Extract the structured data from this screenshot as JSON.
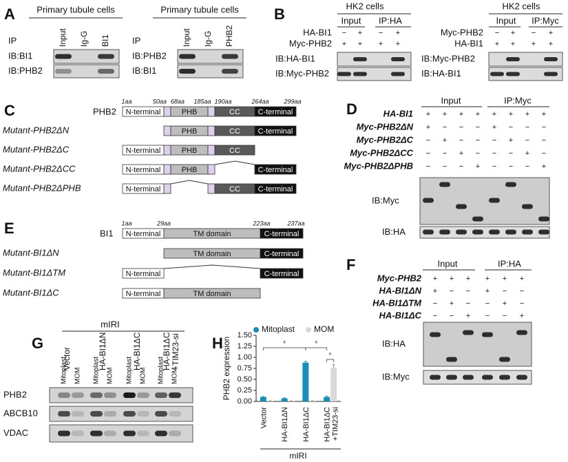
{
  "domains": {
    "n": "N-terminal",
    "phb": "PHB",
    "cc": "CC",
    "c": "C-terminal",
    "tm": "TM domain"
  },
  "panelA": {
    "label": "A",
    "left": {
      "header": "Primary tubule cells",
      "ip": "IP",
      "lanes": [
        "Input",
        "Ig-G",
        "BI1"
      ],
      "blots": [
        "IB:BI1",
        "IB:PHB2"
      ]
    },
    "right": {
      "header": "Primary tubule cells",
      "ip": "IP",
      "lanes": [
        "Input",
        "Ig-G",
        "PHB2"
      ],
      "blots": [
        "IB:PHB2",
        "IB:BI1"
      ]
    }
  },
  "panelB": {
    "label": "B",
    "left": {
      "header": "HK2 cells",
      "groups": [
        "Input",
        "IP:HA"
      ],
      "rows": [
        {
          "name": "HA-BI1",
          "signs": [
            "−",
            "+",
            "−",
            "+"
          ]
        },
        {
          "name": "Myc-PHB2",
          "signs": [
            "+",
            "+",
            "+",
            "+"
          ]
        }
      ],
      "blots": [
        "IB:HA-BI1",
        "IB:Myc-PHB2"
      ]
    },
    "right": {
      "header": "HK2 cells",
      "groups": [
        "Input",
        "IP:Myc"
      ],
      "rows": [
        {
          "name": "Myc-PHB2",
          "signs": [
            "−",
            "+",
            "−",
            "+"
          ]
        },
        {
          "name": "HA-BI1",
          "signs": [
            "+",
            "+",
            "+",
            "+"
          ]
        }
      ],
      "blots": [
        "IB:Myc-PHB2",
        "IB:HA-BI1"
      ]
    }
  },
  "panelC": {
    "label": "C",
    "positions": [
      "1aa",
      "50aa",
      "68aa",
      "185aa",
      "190aa",
      "264aa",
      "299aa"
    ],
    "protein": "PHB2",
    "mutants": [
      "Mutant-PHB2ΔN",
      "Mutant-PHB2ΔC",
      "Mutant-PHB2ΔCC",
      "Mutant-PHB2ΔPHB"
    ]
  },
  "panelD": {
    "label": "D",
    "groups": [
      "Input",
      "IP:Myc"
    ],
    "rows": [
      {
        "name": "HA-BI1",
        "signs": [
          "+",
          "+",
          "+",
          "+",
          "+",
          "+",
          "+",
          "+"
        ]
      },
      {
        "name": "Myc-PHB2ΔN",
        "signs": [
          "+",
          "−",
          "−",
          "−",
          "+",
          "−",
          "−",
          "−"
        ]
      },
      {
        "name": "Myc-PHB2ΔC",
        "signs": [
          "−",
          "+",
          "−",
          "−",
          "−",
          "+",
          "−",
          "−"
        ]
      },
      {
        "name": "Myc-PHB2ΔCC",
        "signs": [
          "−",
          "−",
          "+",
          "−",
          "−",
          "−",
          "+",
          "−"
        ]
      },
      {
        "name": "Myc-PHB2ΔPHB",
        "signs": [
          "−",
          "−",
          "−",
          "+",
          "−",
          "−",
          "−",
          "+"
        ]
      }
    ],
    "blots": [
      "IB:Myc",
      "IB:HA"
    ]
  },
  "panelE": {
    "label": "E",
    "positions": [
      "1aa",
      "29aa",
      "223aa",
      "237aa"
    ],
    "protein": "BI1",
    "mutants": [
      "Mutant-BI1ΔN",
      "Mutant-BI1ΔTM",
      "Mutant-BI1ΔC"
    ]
  },
  "panelF": {
    "label": "F",
    "groups": [
      "Input",
      "IP:HA"
    ],
    "rows": [
      {
        "name": "Myc-PHB2",
        "signs": [
          "+",
          "+",
          "+",
          "+",
          "+",
          "+"
        ]
      },
      {
        "name": "HA-BI1ΔN",
        "signs": [
          "+",
          "−",
          "−",
          "+",
          "−",
          "−"
        ]
      },
      {
        "name": "HA-BI1ΔTM",
        "signs": [
          "−",
          "+",
          "−",
          "−",
          "+",
          "−"
        ]
      },
      {
        "name": "HA-BI1ΔC",
        "signs": [
          "−",
          "−",
          "+",
          "−",
          "−",
          "+"
        ]
      }
    ],
    "blots": [
      "IB:HA",
      "IB:Myc"
    ]
  },
  "panelG": {
    "label": "G",
    "header": "mIRI",
    "conditions": [
      "Vector",
      "HA-BI1ΔN",
      "HA-BI1ΔC",
      "HA-BI1ΔC +TIM23-si"
    ],
    "fractions": [
      "Mitoplast",
      "MOM"
    ],
    "blots": [
      "PHB2",
      "ABCB10",
      "VDAC"
    ]
  },
  "panelH": {
    "label": "H"
  },
  "chart_data": {
    "type": "bar",
    "ylabel": "PHB2 expression",
    "categories": [
      "Vector",
      "HA-BI1ΔN",
      "HA-BI1ΔC",
      "HA-BI1ΔC +TIM23-si"
    ],
    "group_label": "mIRI",
    "series": [
      {
        "name": "Mitoplast",
        "color": "#1b8db8",
        "values": [
          0.1,
          0.07,
          0.88,
          0.1
        ],
        "errors": [
          0.01,
          0.01,
          0.03,
          0.02
        ]
      },
      {
        "name": "MOM",
        "color": "#d9d9d9",
        "values": [
          0.01,
          0.01,
          0.01,
          0.76
        ],
        "errors": [
          0.005,
          0.005,
          0.005,
          0.08
        ]
      }
    ],
    "ylim": [
      0,
      1.5
    ],
    "yticks": [
      {
        "value": 0,
        "label": "0.00"
      },
      0.25,
      {
        "value": 0.5,
        "label": "0.50"
      },
      0.75,
      {
        "value": 1,
        "label": "1.00"
      },
      1.25,
      {
        "value": 1.5,
        "label": "1.50"
      }
    ],
    "annotations": [
      "*",
      "*",
      "*"
    ]
  }
}
